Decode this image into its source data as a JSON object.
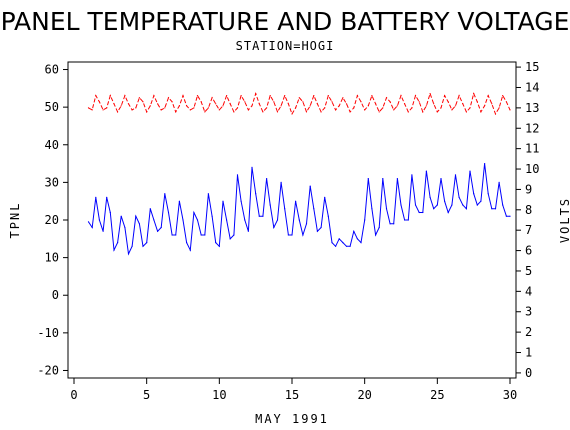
{
  "chart_data": {
    "type": "line",
    "title": "PANEL TEMPERATURE AND BATTERY VOLTAGE",
    "subtitle": "STATION=HOGI",
    "xlabel": "MAY 1991",
    "ylabel_left": "TPNL",
    "ylabel_right": "VOLTS",
    "xlim": [
      0,
      30
    ],
    "ylim_left": [
      -22,
      62
    ],
    "ylim_right": [
      -0.25,
      15.25
    ],
    "x_ticks": [
      0,
      5,
      10,
      15,
      20,
      25,
      30
    ],
    "y_ticks_left": [
      -20,
      -10,
      0,
      10,
      20,
      30,
      40,
      50,
      60
    ],
    "y_ticks_right": [
      0,
      1,
      2,
      3,
      4,
      5,
      6,
      7,
      8,
      9,
      10,
      11,
      12,
      13,
      14,
      15
    ],
    "grid": false,
    "series": [
      {
        "axis": "right",
        "color": "#ff0000",
        "style": "dashed",
        "x": [
          1.0,
          1.25,
          1.5,
          1.75,
          2.0,
          2.25,
          2.5,
          2.75,
          3.0,
          3.25,
          3.5,
          3.75,
          4.0,
          4.25,
          4.5,
          4.75,
          5.0,
          5.25,
          5.5,
          5.75,
          6.0,
          6.25,
          6.5,
          6.75,
          7.0,
          7.25,
          7.5,
          7.75,
          8.0,
          8.25,
          8.5,
          8.75,
          9.0,
          9.25,
          9.5,
          9.75,
          10.0,
          10.25,
          10.5,
          10.75,
          11.0,
          11.25,
          11.5,
          11.75,
          12.0,
          12.25,
          12.5,
          12.75,
          13.0,
          13.25,
          13.5,
          13.75,
          14.0,
          14.25,
          14.5,
          14.75,
          15.0,
          15.25,
          15.5,
          15.75,
          16.0,
          16.25,
          16.5,
          16.75,
          17.0,
          17.25,
          17.5,
          17.75,
          18.0,
          18.25,
          18.5,
          18.75,
          19.0,
          19.25,
          19.5,
          19.75,
          20.0,
          20.25,
          20.5,
          20.75,
          21.0,
          21.25,
          21.5,
          21.75,
          22.0,
          22.25,
          22.5,
          22.75,
          23.0,
          23.25,
          23.5,
          23.75,
          24.0,
          24.25,
          24.5,
          24.75,
          25.0,
          25.25,
          25.5,
          25.75,
          26.0,
          26.25,
          26.5,
          26.75,
          27.0,
          27.25,
          27.5,
          27.75,
          28.0,
          28.25,
          28.5,
          28.75,
          29.0,
          29.25,
          29.5,
          29.75,
          30.0
        ],
        "values": [
          13.0,
          12.9,
          13.6,
          13.3,
          12.9,
          13.0,
          13.6,
          13.2,
          12.8,
          13.1,
          13.6,
          13.2,
          12.9,
          13.0,
          13.5,
          13.3,
          12.8,
          13.1,
          13.6,
          13.2,
          12.9,
          13.0,
          13.5,
          13.3,
          12.8,
          13.1,
          13.6,
          13.1,
          12.9,
          13.0,
          13.6,
          13.3,
          12.8,
          13.0,
          13.5,
          13.2,
          12.9,
          13.1,
          13.6,
          13.2,
          12.8,
          13.0,
          13.6,
          13.3,
          12.9,
          13.1,
          13.7,
          13.2,
          12.8,
          13.0,
          13.6,
          13.3,
          12.8,
          13.1,
          13.6,
          13.2,
          12.7,
          13.0,
          13.5,
          13.3,
          12.8,
          13.1,
          13.6,
          13.2,
          12.8,
          13.0,
          13.6,
          13.3,
          12.9,
          13.1,
          13.5,
          13.2,
          12.8,
          13.0,
          13.6,
          13.3,
          12.9,
          13.1,
          13.6,
          13.2,
          12.8,
          13.0,
          13.5,
          13.3,
          12.9,
          13.1,
          13.6,
          13.2,
          12.8,
          13.0,
          13.6,
          13.3,
          12.8,
          13.1,
          13.7,
          13.2,
          12.8,
          13.0,
          13.6,
          13.3,
          12.9,
          13.1,
          13.6,
          13.2,
          12.8,
          13.0,
          13.7,
          13.3,
          12.8,
          13.1,
          13.6,
          13.2,
          12.7,
          13.0,
          13.6,
          13.3,
          12.9
        ]
      },
      {
        "axis": "left",
        "color": "#0000ff",
        "style": "solid",
        "x": [
          1.0,
          1.25,
          1.5,
          1.75,
          2.0,
          2.25,
          2.5,
          2.75,
          3.0,
          3.25,
          3.5,
          3.75,
          4.0,
          4.25,
          4.5,
          4.75,
          5.0,
          5.25,
          5.5,
          5.75,
          6.0,
          6.25,
          6.5,
          6.75,
          7.0,
          7.25,
          7.5,
          7.75,
          8.0,
          8.25,
          8.5,
          8.75,
          9.0,
          9.25,
          9.5,
          9.75,
          10.0,
          10.25,
          10.5,
          10.75,
          11.0,
          11.25,
          11.5,
          11.75,
          12.0,
          12.25,
          12.5,
          12.75,
          13.0,
          13.25,
          13.5,
          13.75,
          14.0,
          14.25,
          14.5,
          14.75,
          15.0,
          15.25,
          15.5,
          15.75,
          16.0,
          16.25,
          16.5,
          16.75,
          17.0,
          17.25,
          17.5,
          17.75,
          18.0,
          18.25,
          18.5,
          18.75,
          19.0,
          19.25,
          19.5,
          19.75,
          20.0,
          20.25,
          20.5,
          20.75,
          21.0,
          21.25,
          21.5,
          21.75,
          22.0,
          22.25,
          22.5,
          22.75,
          23.0,
          23.25,
          23.5,
          23.75,
          24.0,
          24.25,
          24.5,
          24.75,
          25.0,
          25.25,
          25.5,
          25.75,
          26.0,
          26.25,
          26.5,
          26.75,
          27.0,
          27.25,
          27.5,
          27.75,
          28.0,
          28.25,
          28.5,
          28.75,
          29.0,
          29.25,
          29.5,
          29.75,
          30.0
        ],
        "values": [
          19.5,
          18.0,
          26.0,
          20.0,
          17.0,
          26.0,
          22.0,
          12.0,
          14.0,
          21.0,
          18.0,
          11.0,
          13.0,
          21.0,
          19.0,
          13.0,
          14.0,
          23.0,
          20.0,
          17.0,
          18.0,
          27.0,
          22.0,
          16.0,
          16.0,
          25.0,
          20.0,
          14.0,
          12.0,
          22.0,
          20.0,
          16.0,
          16.0,
          27.0,
          21.0,
          14.0,
          13.0,
          25.0,
          20.0,
          15.0,
          16.0,
          32.0,
          25.0,
          20.0,
          17.0,
          34.0,
          27.0,
          21.0,
          21.0,
          31.0,
          24.0,
          18.0,
          20.0,
          30.0,
          23.0,
          16.0,
          16.0,
          25.0,
          20.0,
          16.0,
          19.0,
          29.0,
          23.0,
          17.0,
          18.0,
          26.0,
          21.0,
          14.0,
          13.0,
          15.0,
          14.0,
          13.0,
          13.0,
          17.0,
          15.0,
          14.0,
          20.0,
          31.0,
          23.0,
          16.0,
          18.0,
          31.0,
          23.0,
          19.0,
          19.0,
          31.0,
          24.0,
          20.0,
          20.0,
          32.0,
          24.0,
          22.0,
          22.0,
          33.0,
          26.0,
          23.0,
          24.0,
          31.0,
          25.0,
          22.0,
          24.0,
          32.0,
          26.0,
          24.0,
          23.0,
          33.0,
          27.0,
          24.0,
          25.0,
          35.0,
          27.0,
          23.0,
          23.0,
          30.0,
          24.0,
          21.0,
          21.0
        ]
      }
    ]
  }
}
